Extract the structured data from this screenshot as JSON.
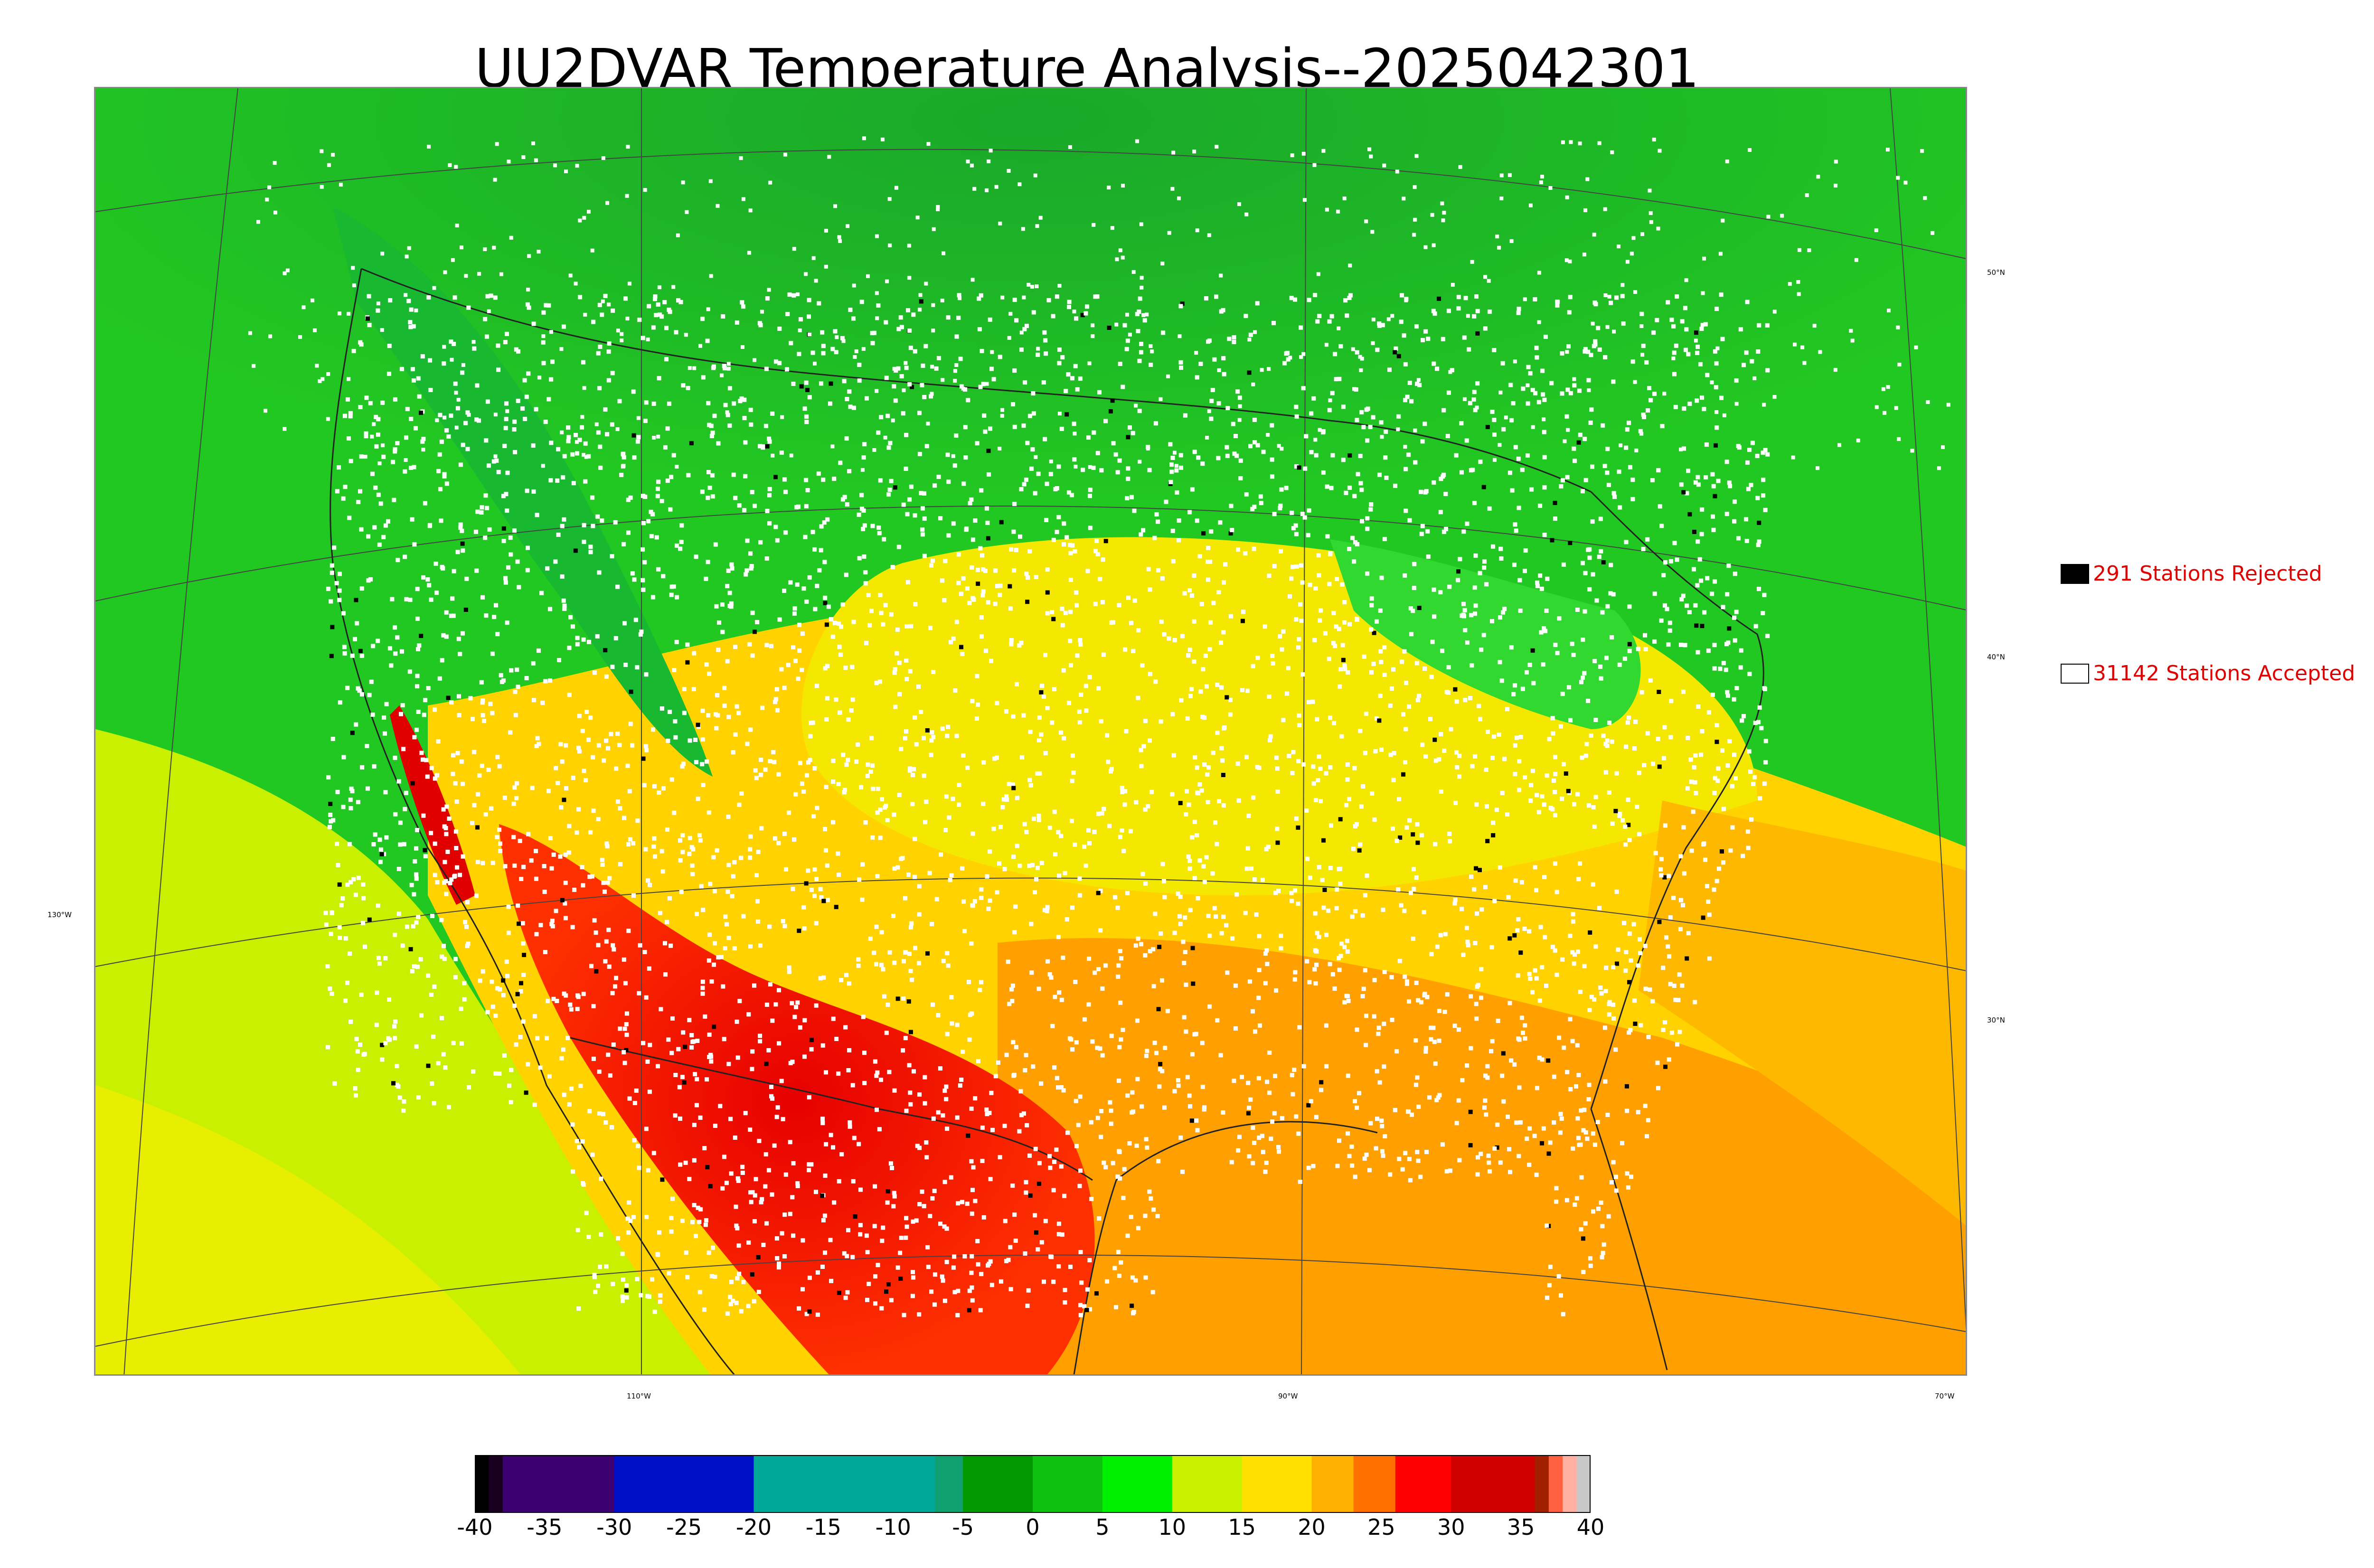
{
  "title": "UU2DVAR Temperature Analysis--2025042301",
  "map": {
    "grid_labels": {
      "lat_50": "50°N",
      "lat_40": "40°N",
      "lat_30": "30°N",
      "lon_130": "130°W",
      "lon_110": "110°W",
      "lon_90": "90°W",
      "lon_70": "70°W"
    },
    "colors": {
      "cold_north": "#1ec81e",
      "cool": "#3ee63e",
      "mild_yellow": "#f0e600",
      "warm_orange": "#ff9a00",
      "hot_red": "#e60000",
      "ocean_yellowgreen": "#c8f000",
      "station_accepted": "#ffffff",
      "station_rejected": "#000000"
    }
  },
  "legend": {
    "rejected": {
      "label": "291 Stations Rejected",
      "swatch": "#000000"
    },
    "accepted": {
      "label": "31142 Stations Accepted",
      "swatch": "#ffffff"
    }
  },
  "colorbar": {
    "ticks": [
      "-40",
      "-35",
      "-30",
      "-25",
      "-20",
      "-15",
      "-10",
      "-5",
      "0",
      "5",
      "10",
      "15",
      "20",
      "25",
      "30",
      "35",
      "40"
    ],
    "range": [
      -40,
      40
    ],
    "segments": [
      {
        "from": -40,
        "to": -39,
        "color": "#000000"
      },
      {
        "from": -39,
        "to": -38,
        "color": "#1a0020"
      },
      {
        "from": -38,
        "to": -30,
        "color": "#3d0070"
      },
      {
        "from": -30,
        "to": -20,
        "color": "#0010c8"
      },
      {
        "from": -20,
        "to": -7,
        "color": "#00a89a"
      },
      {
        "from": -7,
        "to": -5,
        "color": "#10a070"
      },
      {
        "from": -5,
        "to": 0,
        "color": "#009a00"
      },
      {
        "from": 0,
        "to": 5,
        "color": "#10c010"
      },
      {
        "from": 5,
        "to": 10,
        "color": "#00ee00"
      },
      {
        "from": 10,
        "to": 15,
        "color": "#c8f000"
      },
      {
        "from": 15,
        "to": 20,
        "color": "#ffe000"
      },
      {
        "from": 20,
        "to": 23,
        "color": "#ffb000"
      },
      {
        "from": 23,
        "to": 26,
        "color": "#ff7000"
      },
      {
        "from": 26,
        "to": 30,
        "color": "#ff0000"
      },
      {
        "from": 30,
        "to": 36,
        "color": "#d00000"
      },
      {
        "from": 36,
        "to": 37,
        "color": "#a02000"
      },
      {
        "from": 37,
        "to": 38,
        "color": "#ff6040"
      },
      {
        "from": 38,
        "to": 39,
        "color": "#ffb0a0"
      },
      {
        "from": 39,
        "to": 40,
        "color": "#c8c8c8"
      }
    ]
  }
}
